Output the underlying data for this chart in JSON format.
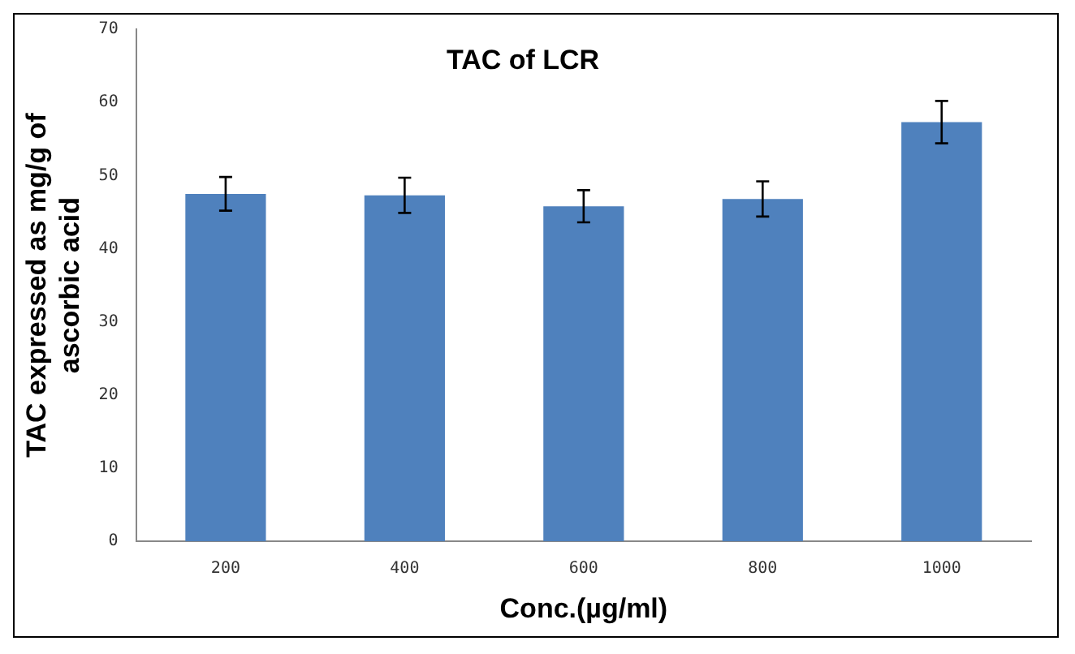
{
  "chart_data": {
    "type": "bar",
    "title": "TAC of LCR",
    "xlabel": "Conc.(µg/ml)",
    "ylabel": "TAC expressed as mg/g of ascorbic acid",
    "categories": [
      "200",
      "400",
      "600",
      "800",
      "1000"
    ],
    "values": [
      47.5,
      47.3,
      45.8,
      46.8,
      57.3
    ],
    "errors": [
      2.3,
      2.4,
      2.2,
      2.4,
      2.9
    ],
    "color": "#4f81bd",
    "ylim": [
      0,
      70
    ],
    "yticks": [
      0,
      10,
      20,
      30,
      40,
      50,
      60,
      70
    ],
    "grid": false,
    "legend": false
  }
}
